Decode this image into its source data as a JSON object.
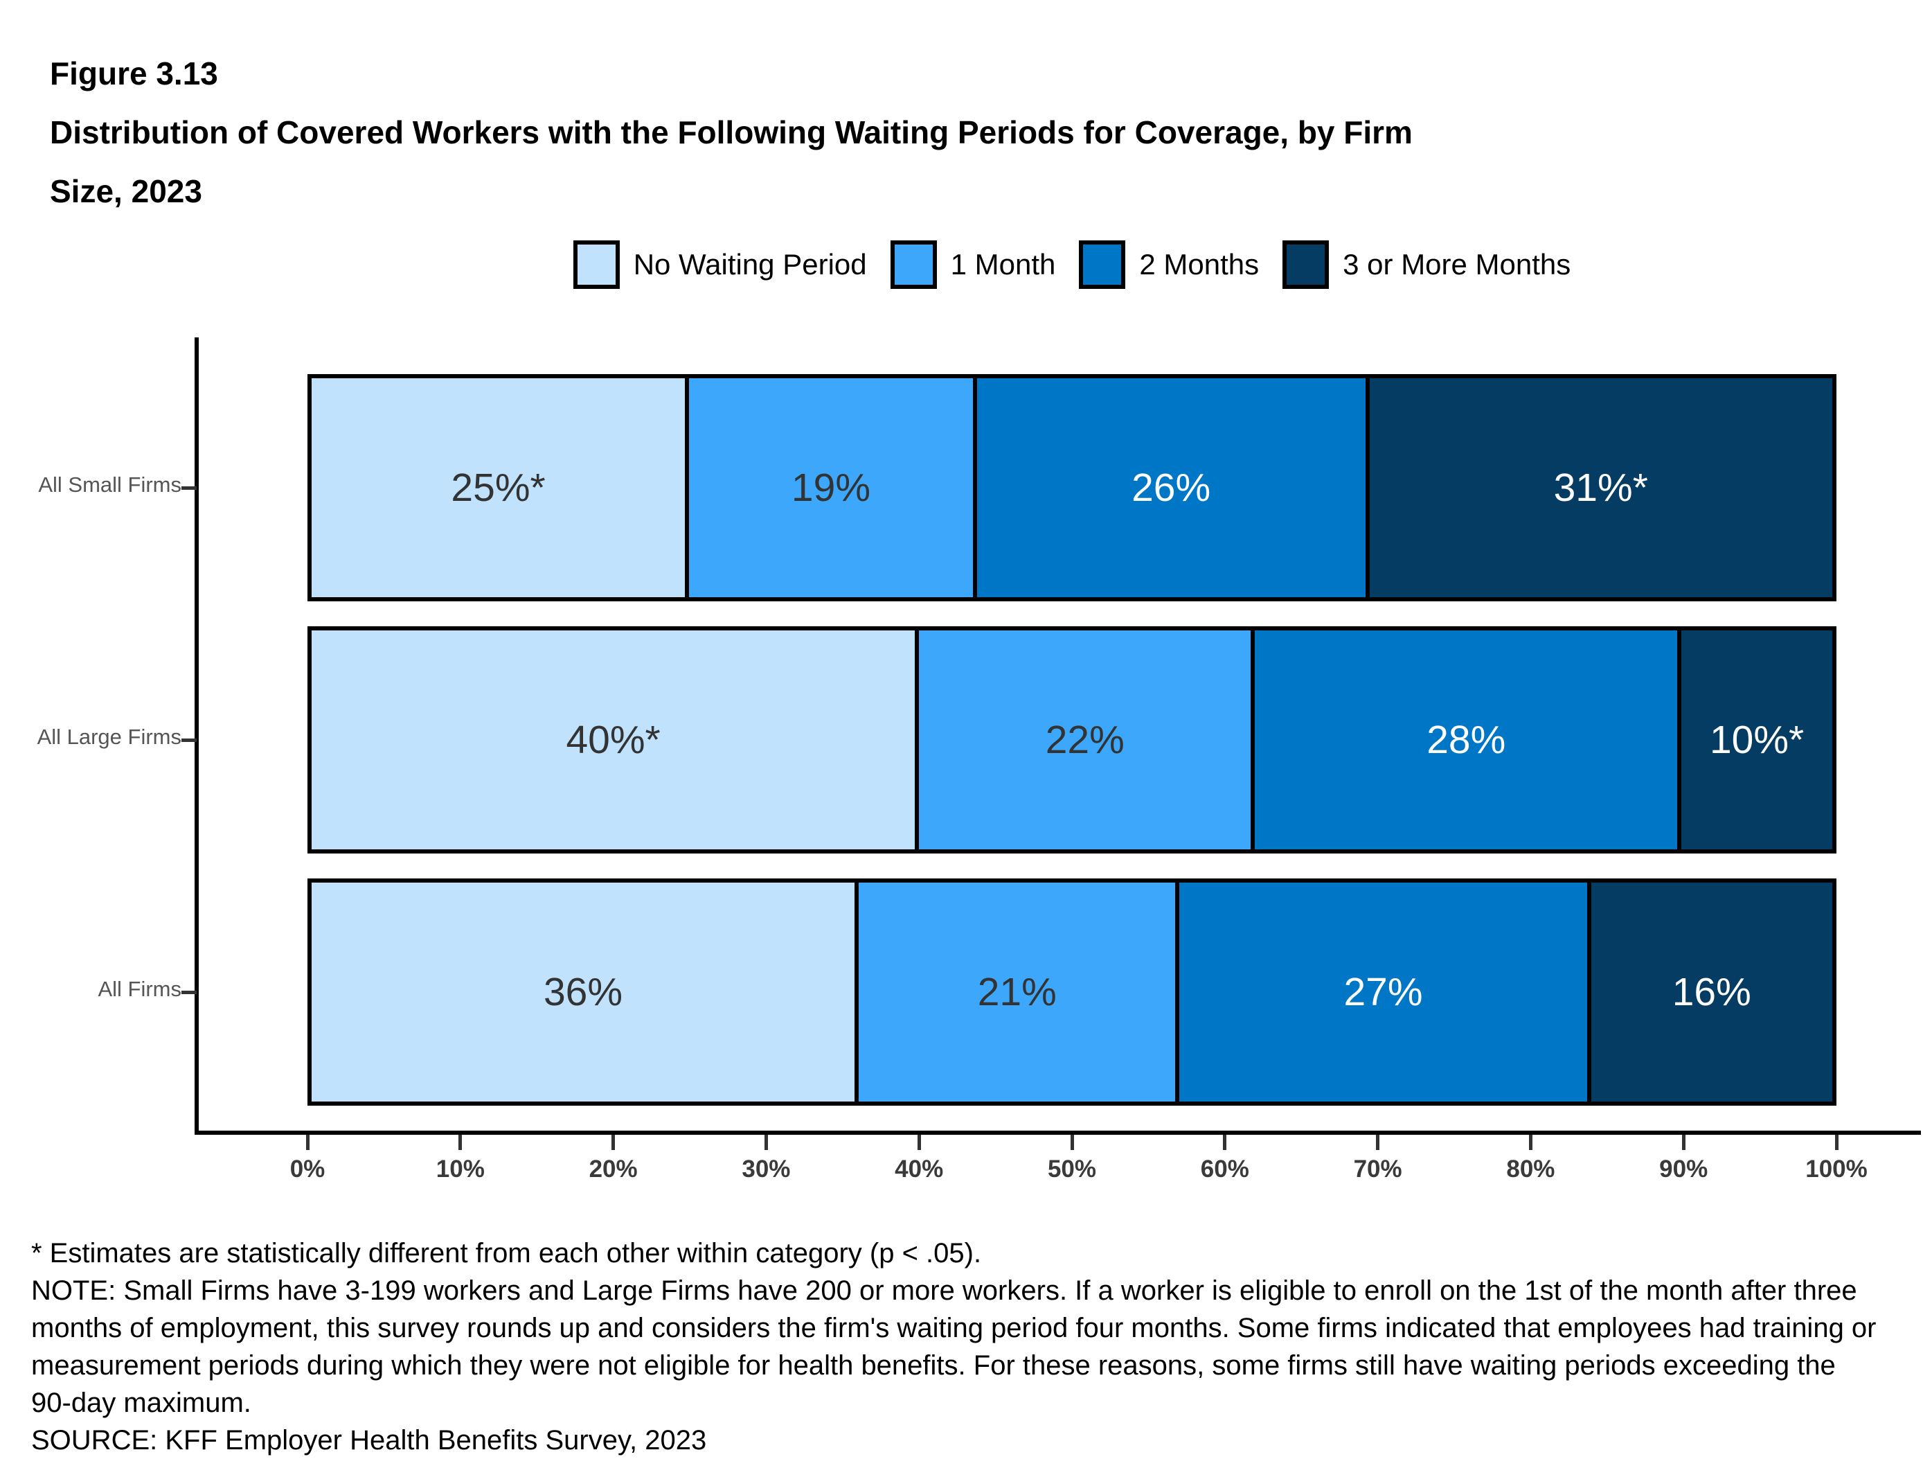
{
  "header": {
    "figure_label": "Figure 3.13",
    "title_lines": [
      "Distribution of Covered Workers with the Following Waiting Periods for Coverage, by Firm",
      "Size, 2023"
    ]
  },
  "chart_data": {
    "type": "bar",
    "orientation": "horizontal",
    "stacked": true,
    "title": "Distribution of Covered Workers with the Following Waiting Periods for Coverage, by Firm Size, 2023",
    "categories": [
      "All Small Firms",
      "All Large Firms",
      "All Firms"
    ],
    "series": [
      {
        "name": "No Waiting Period",
        "color": "#C0E2FD",
        "label_color": "#333333",
        "values": [
          25,
          40,
          36
        ],
        "labels": [
          "25%*",
          "40%*",
          "36%"
        ]
      },
      {
        "name": "1 Month",
        "color": "#3DA8FB",
        "label_color": "#333333",
        "values": [
          19,
          22,
          21
        ],
        "labels": [
          "19%",
          "22%",
          "21%"
        ]
      },
      {
        "name": "2 Months",
        "color": "#0076C6",
        "label_color": "#FFFFFF",
        "values": [
          26,
          28,
          27
        ],
        "labels": [
          "26%",
          "28%",
          "27%"
        ]
      },
      {
        "name": "3 or More Months",
        "color": "#043C64",
        "label_color": "#FFFFFF",
        "values": [
          31,
          10,
          16
        ],
        "labels": [
          "31%*",
          "10%*",
          "16%"
        ]
      }
    ],
    "x_axis": {
      "tick_labels": [
        "0%",
        "10%",
        "20%",
        "30%",
        "40%",
        "50%",
        "60%",
        "70%",
        "80%",
        "90%",
        "100%"
      ],
      "range": [
        0,
        100
      ]
    },
    "grid": false,
    "legend_position": "top-center"
  },
  "footnotes": {
    "lines": [
      "* Estimates are statistically different from each other within category (p < .05).",
      "NOTE: Small Firms have 3-199 workers and Large Firms have 200 or more workers. If a worker is eligible to enroll on the 1st of the month after three",
      "months of employment, this survey rounds up and considers the firm's waiting period four months. Some firms indicated that employees had training or",
      "measurement periods during which they were not eligible for health benefits. For these reasons, some firms still have waiting periods exceeding the",
      "90-day maximum.",
      "SOURCE: KFF Employer Health Benefits Survey, 2023"
    ]
  }
}
